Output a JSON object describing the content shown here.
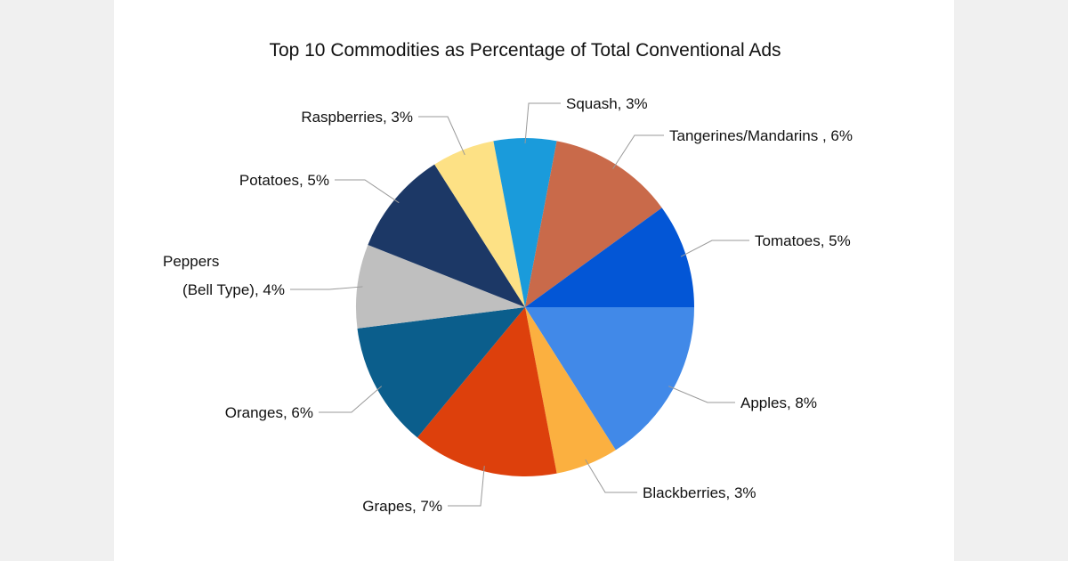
{
  "chart_data": {
    "type": "pie",
    "title": "Top 10 Commodities as Percentage of Total Conventional Ads",
    "start_angle": "3 o'clock",
    "direction": "clockwise",
    "slices": [
      {
        "label": "Apples, 8%",
        "name": "Apples",
        "value": 8,
        "color": "#4189E8"
      },
      {
        "label": "Blackberries, 3%",
        "name": "Blackberries",
        "value": 3,
        "color": "#FBB040"
      },
      {
        "label": "Grapes, 7%",
        "name": "Grapes",
        "value": 7,
        "color": "#DD400C"
      },
      {
        "label": "Oranges, 6%",
        "name": "Oranges",
        "value": 6,
        "color": "#0B5E8C"
      },
      {
        "label": "(Bell Type), 4%",
        "label_line1": "Peppers",
        "name": "Peppers (Bell Type)",
        "value": 4,
        "color": "#BFBFBF"
      },
      {
        "label": "Potatoes, 5%",
        "name": "Potatoes",
        "value": 5,
        "color": "#1C3866"
      },
      {
        "label": "Raspberries, 3%",
        "name": "Raspberries",
        "value": 3,
        "color": "#FDE185"
      },
      {
        "label": "Squash, 3%",
        "name": "Squash",
        "value": 3,
        "color": "#1A9BDB"
      },
      {
        "label": "Tangerines/Mandarins , 6%",
        "name": "Tangerines/Mandarins",
        "value": 6,
        "color": "#C96A4A"
      },
      {
        "label": "Tomatoes, 5%",
        "name": "Tomatoes",
        "value": 5,
        "color": "#0356D6"
      }
    ]
  }
}
